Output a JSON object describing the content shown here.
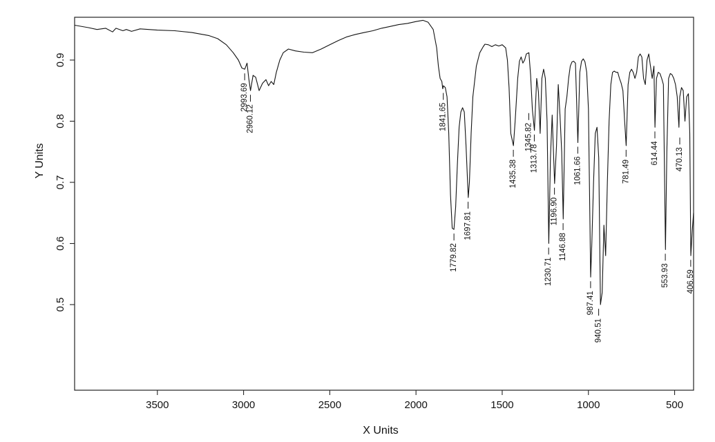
{
  "chart_data": {
    "type": "line",
    "title": "",
    "xlabel": "X Units",
    "ylabel": "Y Units",
    "xlim": [
      3980,
      390
    ],
    "ylim": [
      0.36,
      0.97
    ],
    "x_reversed": true,
    "grid": false,
    "x_ticks": [
      3500,
      3000,
      2500,
      2000,
      1500,
      1000,
      500
    ],
    "x_tick_labels": [
      "3500",
      "3000",
      "2500",
      "2000",
      "1500",
      "1000",
      "500"
    ],
    "y_ticks": [
      0.5,
      0.6,
      0.7,
      0.8,
      0.9
    ],
    "y_tick_labels": [
      "0.5",
      "0.6",
      "0.7",
      "0.8",
      "0.9"
    ],
    "series": [
      {
        "x": [
          3980,
          3900,
          3850,
          3800,
          3760,
          3740,
          3700,
          3680,
          3650,
          3600,
          3500,
          3400,
          3300,
          3200,
          3150,
          3100,
          3060,
          3030,
          3010,
          2993,
          2980,
          2970,
          2960,
          2945,
          2930,
          2910,
          2890,
          2870,
          2855,
          2840,
          2825,
          2810,
          2790,
          2770,
          2740,
          2700,
          2650,
          2600,
          2550,
          2500,
          2450,
          2400,
          2350,
          2300,
          2250,
          2200,
          2150,
          2100,
          2050,
          2000,
          1960,
          1930,
          1900,
          1880,
          1870,
          1860,
          1850,
          1845,
          1841,
          1830,
          1820,
          1810,
          1800,
          1790,
          1780,
          1770,
          1760,
          1750,
          1740,
          1730,
          1720,
          1710,
          1697,
          1690,
          1680,
          1670,
          1650,
          1630,
          1610,
          1600,
          1580,
          1560,
          1540,
          1520,
          1500,
          1480,
          1470,
          1460,
          1450,
          1435,
          1425,
          1410,
          1400,
          1390,
          1380,
          1370,
          1360,
          1345,
          1335,
          1325,
          1313,
          1300,
          1290,
          1280,
          1270,
          1260,
          1250,
          1240,
          1230,
          1220,
          1210,
          1196,
          1185,
          1175,
          1165,
          1155,
          1146,
          1135,
          1125,
          1115,
          1105,
          1095,
          1085,
          1075,
          1061,
          1050,
          1040,
          1030,
          1020,
          1010,
          1000,
          987,
          980,
          970,
          960,
          950,
          940,
          930,
          920,
          910,
          900,
          890,
          880,
          870,
          860,
          850,
          840,
          830,
          820,
          810,
          800,
          790,
          781,
          770,
          760,
          750,
          740,
          730,
          720,
          710,
          700,
          690,
          680,
          670,
          660,
          650,
          640,
          630,
          620,
          614,
          605,
          595,
          585,
          575,
          565,
          553,
          545,
          535,
          525,
          515,
          505,
          495,
          485,
          475,
          470,
          460,
          450,
          440,
          430,
          420,
          412,
          406,
          398,
          390
        ],
        "y": [
          0.957,
          0.953,
          0.95,
          0.952,
          0.946,
          0.952,
          0.948,
          0.95,
          0.947,
          0.951,
          0.949,
          0.948,
          0.945,
          0.94,
          0.935,
          0.925,
          0.912,
          0.9,
          0.887,
          0.885,
          0.895,
          0.87,
          0.85,
          0.875,
          0.872,
          0.85,
          0.862,
          0.868,
          0.858,
          0.865,
          0.86,
          0.88,
          0.9,
          0.912,
          0.918,
          0.915,
          0.913,
          0.912,
          0.918,
          0.925,
          0.932,
          0.938,
          0.942,
          0.945,
          0.948,
          0.952,
          0.955,
          0.958,
          0.96,
          0.963,
          0.965,
          0.962,
          0.95,
          0.92,
          0.89,
          0.87,
          0.865,
          0.853,
          0.858,
          0.855,
          0.84,
          0.78,
          0.68,
          0.625,
          0.623,
          0.66,
          0.73,
          0.79,
          0.815,
          0.822,
          0.815,
          0.76,
          0.675,
          0.7,
          0.78,
          0.84,
          0.89,
          0.912,
          0.922,
          0.926,
          0.925,
          0.922,
          0.925,
          0.923,
          0.925,
          0.92,
          0.9,
          0.855,
          0.78,
          0.76,
          0.8,
          0.87,
          0.898,
          0.905,
          0.895,
          0.9,
          0.91,
          0.912,
          0.875,
          0.82,
          0.785,
          0.87,
          0.848,
          0.78,
          0.87,
          0.885,
          0.87,
          0.8,
          0.6,
          0.74,
          0.81,
          0.698,
          0.76,
          0.86,
          0.81,
          0.75,
          0.64,
          0.82,
          0.84,
          0.87,
          0.89,
          0.897,
          0.898,
          0.895,
          0.765,
          0.88,
          0.898,
          0.902,
          0.897,
          0.88,
          0.82,
          0.545,
          0.6,
          0.7,
          0.78,
          0.79,
          0.74,
          0.5,
          0.52,
          0.63,
          0.58,
          0.7,
          0.8,
          0.86,
          0.88,
          0.882,
          0.88,
          0.88,
          0.87,
          0.862,
          0.85,
          0.8,
          0.76,
          0.86,
          0.88,
          0.885,
          0.88,
          0.87,
          0.88,
          0.905,
          0.91,
          0.905,
          0.87,
          0.86,
          0.9,
          0.91,
          0.89,
          0.87,
          0.89,
          0.79,
          0.87,
          0.88,
          0.878,
          0.87,
          0.86,
          0.59,
          0.75,
          0.87,
          0.878,
          0.876,
          0.87,
          0.86,
          0.84,
          0.79,
          0.84,
          0.855,
          0.85,
          0.8,
          0.84,
          0.845,
          0.78,
          0.58,
          0.62,
          0.65
        ]
      }
    ],
    "annotations": [
      "2993.69",
      "2960.12",
      "1841.65",
      "1779.82",
      "1697.81",
      "1435.38",
      "1345.82",
      "1313.78",
      "1230.71",
      "1196.90",
      "1146.88",
      "1061.66",
      "987.41",
      "940.51",
      "781.49",
      "614.44",
      "553.93",
      "470.13",
      "406.59"
    ],
    "peak_labels": [
      {
        "label": "2993.69",
        "x": 2993.69,
        "y": 0.885
      },
      {
        "label": "2960.12",
        "x": 2960.12,
        "y": 0.85
      },
      {
        "label": "1841.65",
        "x": 1841.65,
        "y": 0.853
      },
      {
        "label": "1779.82",
        "x": 1779.82,
        "y": 0.623
      },
      {
        "label": "1697.81",
        "x": 1697.81,
        "y": 0.675
      },
      {
        "label": "1435.38",
        "x": 1435.38,
        "y": 0.76
      },
      {
        "label": "1345.82",
        "x": 1345.82,
        "y": 0.82
      },
      {
        "label": "1313.78",
        "x": 1313.78,
        "y": 0.785
      },
      {
        "label": "1230.71",
        "x": 1230.71,
        "y": 0.6
      },
      {
        "label": "1196.90",
        "x": 1196.9,
        "y": 0.698
      },
      {
        "label": "1146.88",
        "x": 1146.88,
        "y": 0.64
      },
      {
        "label": "1061.66",
        "x": 1061.66,
        "y": 0.765
      },
      {
        "label": "987.41",
        "x": 987.41,
        "y": 0.545
      },
      {
        "label": "940.51",
        "x": 940.51,
        "y": 0.5
      },
      {
        "label": "781.49",
        "x": 781.49,
        "y": 0.76
      },
      {
        "label": "614.44",
        "x": 614.44,
        "y": 0.79
      },
      {
        "label": "553.93",
        "x": 553.93,
        "y": 0.59
      },
      {
        "label": "470.13",
        "x": 470.13,
        "y": 0.78
      },
      {
        "label": "406.59",
        "x": 406.59,
        "y": 0.58
      }
    ]
  }
}
